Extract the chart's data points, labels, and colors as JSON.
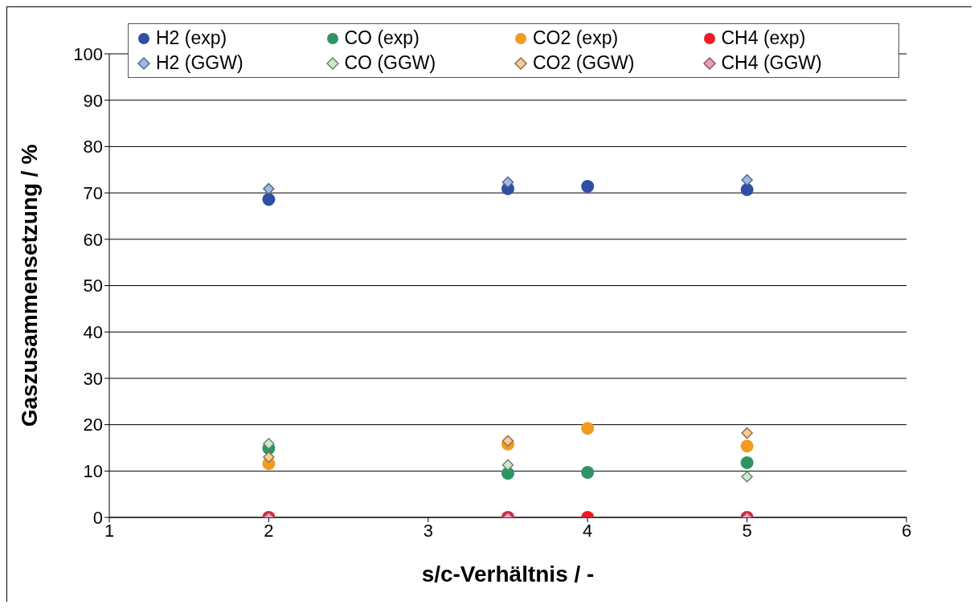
{
  "chart_data": {
    "type": "scatter",
    "xlabel": "s/c-Verhältnis / -",
    "ylabel": "Gaszusammensetzung / %",
    "x": [
      2,
      3.5,
      4,
      5
    ],
    "series": [
      {
        "name": "H2 (exp)",
        "color": "#2e4fa3",
        "marker": "circle",
        "values": [
          68.6,
          70.9,
          71.4,
          70.7
        ]
      },
      {
        "name": "CO (exp)",
        "color": "#2e9465",
        "marker": "circle",
        "values": [
          14.9,
          9.5,
          9.7,
          11.8
        ]
      },
      {
        "name": "CO2 (exp)",
        "color": "#f39a22",
        "marker": "circle",
        "values": [
          11.6,
          15.8,
          19.2,
          15.4
        ]
      },
      {
        "name": "CH4 (exp)",
        "color": "#ec1c24",
        "marker": "circle",
        "values": [
          0,
          0,
          0,
          0
        ]
      },
      {
        "name": "H2 (GGW)",
        "color": "#9dbbea",
        "marker": "diamond",
        "values": [
          70.9,
          72.3,
          null,
          72.8
        ]
      },
      {
        "name": "CO (GGW)",
        "color": "#cde8c8",
        "marker": "diamond",
        "values": [
          15.9,
          11.3,
          null,
          8.8
        ]
      },
      {
        "name": "CO2 (GGW)",
        "color": "#fcc98f",
        "marker": "diamond",
        "values": [
          13,
          16.5,
          null,
          18.2
        ]
      },
      {
        "name": "CH4 (GGW)",
        "color": "#f39ac0",
        "marker": "diamond",
        "values": [
          0,
          0,
          null,
          0
        ]
      }
    ],
    "xlim": [
      1,
      6
    ],
    "xticks": [
      1,
      2,
      3,
      4,
      5,
      6
    ],
    "ylim": [
      0,
      100
    ],
    "yticks": [
      0,
      10,
      20,
      30,
      40,
      50,
      60,
      70,
      80,
      90,
      100
    ],
    "grid": "y",
    "legend": "top"
  }
}
